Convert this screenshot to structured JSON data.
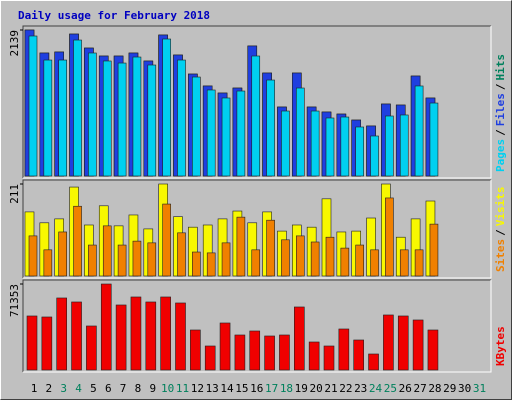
{
  "chart_data": {
    "type": "bar",
    "title": "Daily usage for February 2018",
    "categories": [
      "1",
      "2",
      "3",
      "4",
      "5",
      "6",
      "7",
      "8",
      "9",
      "10",
      "11",
      "12",
      "13",
      "14",
      "15",
      "16",
      "17",
      "18",
      "19",
      "20",
      "21",
      "22",
      "23",
      "24",
      "25",
      "26",
      "27",
      "28",
      "29",
      "30",
      "31"
    ],
    "category_colors": [
      "#000000",
      "#000000",
      "#00805c",
      "#00805c",
      "#000000",
      "#000000",
      "#000000",
      "#000000",
      "#000000",
      "#00805c",
      "#00805c",
      "#000000",
      "#000000",
      "#000000",
      "#000000",
      "#000000",
      "#00805c",
      "#00805c",
      "#000000",
      "#000000",
      "#000000",
      "#000000",
      "#000000",
      "#00805c",
      "#00805c",
      "#000000",
      "#000000",
      "#000000",
      "#000000",
      "#000000",
      "#00805c"
    ],
    "legend_separator": "/",
    "panels": [
      {
        "ylim": [
          0,
          2139
        ],
        "yticks": [
          2139
        ],
        "series": [
          {
            "name": "Hits",
            "color": "#00805c",
            "values": [
              2139,
              1802,
              1817,
              2080,
              1875,
              1758,
              1758,
              1802,
              1685,
              2066,
              1773,
              1494,
              1319,
              1216,
              1289,
              1905,
              1509,
              1011,
              1509,
              1011,
              938,
              908,
              820,
              733,
              1055,
              1040,
              1465,
              1143,
              null,
              null,
              null
            ]
          },
          {
            "name": "Files",
            "color": "#1f3fe0",
            "values": [
              2139,
              1802,
              1817,
              2080,
              1875,
              1758,
              1758,
              1802,
              1685,
              2066,
              1773,
              1494,
              1319,
              1216,
              1289,
              1905,
              1509,
              1011,
              1509,
              1011,
              938,
              908,
              820,
              733,
              1055,
              1040,
              1465,
              1143,
              null,
              null,
              null
            ]
          },
          {
            "name": "Pages",
            "color": "#00d0f0",
            "values": [
              2051,
              1699,
              1699,
              1992,
              1802,
              1685,
              1655,
              1743,
              1626,
              2007,
              1699,
              1450,
              1260,
              1143,
              1245,
              1758,
              1406,
              952,
              1289,
              952,
              850,
              864,
              718,
              586,
              879,
              894,
              1319,
              1069,
              null,
              null,
              null
            ]
          }
        ]
      },
      {
        "ylim": [
          0,
          211
        ],
        "yticks": [
          211
        ],
        "series": [
          {
            "name": "Visits",
            "color": "#f8f800",
            "values": [
              147,
              122,
              131,
              204,
              117,
              161,
              115,
              140,
              108,
              211,
              136,
              112,
              117,
              131,
              149,
              122,
              147,
              103,
              117,
              112,
              177,
              101,
              103,
              133,
              211,
              89,
              131,
              172,
              null,
              null,
              null
            ]
          },
          {
            "name": "Sites",
            "color": "#f08000",
            "values": [
              92,
              60,
              101,
              160,
              71,
              115,
              71,
              80,
              76,
              165,
              99,
              55,
              53,
              76,
              135,
              60,
              128,
              83,
              92,
              78,
              89,
              64,
              71,
              60,
              179,
              60,
              60,
              119,
              null,
              null,
              null
            ]
          }
        ]
      },
      {
        "ylim": [
          0,
          71353
        ],
        "yticks": [
          71353
        ],
        "series": [
          {
            "name": "KBytes",
            "color": "#f00000",
            "values": [
              44820,
              43990,
              59760,
              56440,
              36520,
              71353,
              53950,
              60590,
              56440,
              60590,
              55610,
              33200,
              19920,
              39010,
              29050,
              32370,
              28220,
              29050,
              52290,
              23240,
              19920,
              34030,
              24900,
              13280,
              45650,
              44820,
              41500,
              33200,
              null,
              null,
              null
            ]
          }
        ]
      }
    ]
  }
}
